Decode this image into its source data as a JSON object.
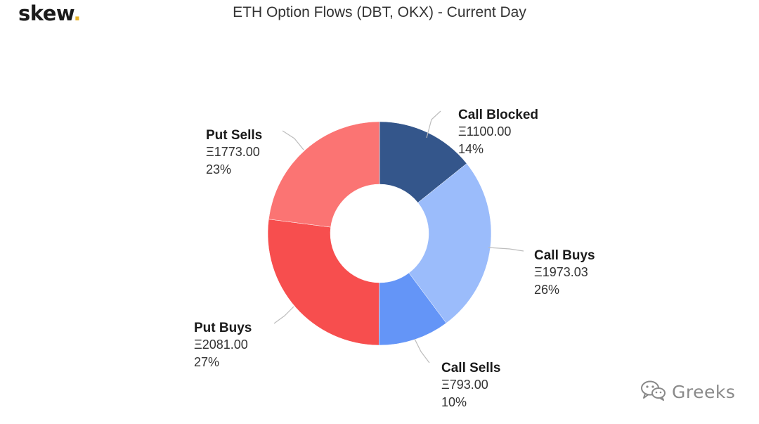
{
  "brand": {
    "name": "skew",
    "dot": "."
  },
  "watermark": {
    "text": "Greeks",
    "icon": "wechat-icon"
  },
  "chart_data": {
    "type": "pie",
    "variant": "donut",
    "title": "ETH Option Flows (DBT, OKX) - Current Day",
    "currency_symbol": "Ξ",
    "legend": "none",
    "slices": [
      {
        "name": "Call Blocked",
        "value": 1100.0,
        "display_value": "Ξ1100.00",
        "percent": "14%",
        "color": "#34568b"
      },
      {
        "name": "Call Buys",
        "value": 1973.03,
        "display_value": "Ξ1973.03",
        "percent": "26%",
        "color": "#9bbcfb"
      },
      {
        "name": "Call Sells",
        "value": 793.0,
        "display_value": "Ξ793.00",
        "percent": "10%",
        "color": "#6495f7"
      },
      {
        "name": "Put Buys",
        "value": 2081.0,
        "display_value": "Ξ2081.00",
        "percent": "27%",
        "color": "#f74e4e"
      },
      {
        "name": "Put Sells",
        "value": 1773.0,
        "display_value": "Ξ1773.00",
        "percent": "23%",
        "color": "#fb7473"
      }
    ]
  }
}
